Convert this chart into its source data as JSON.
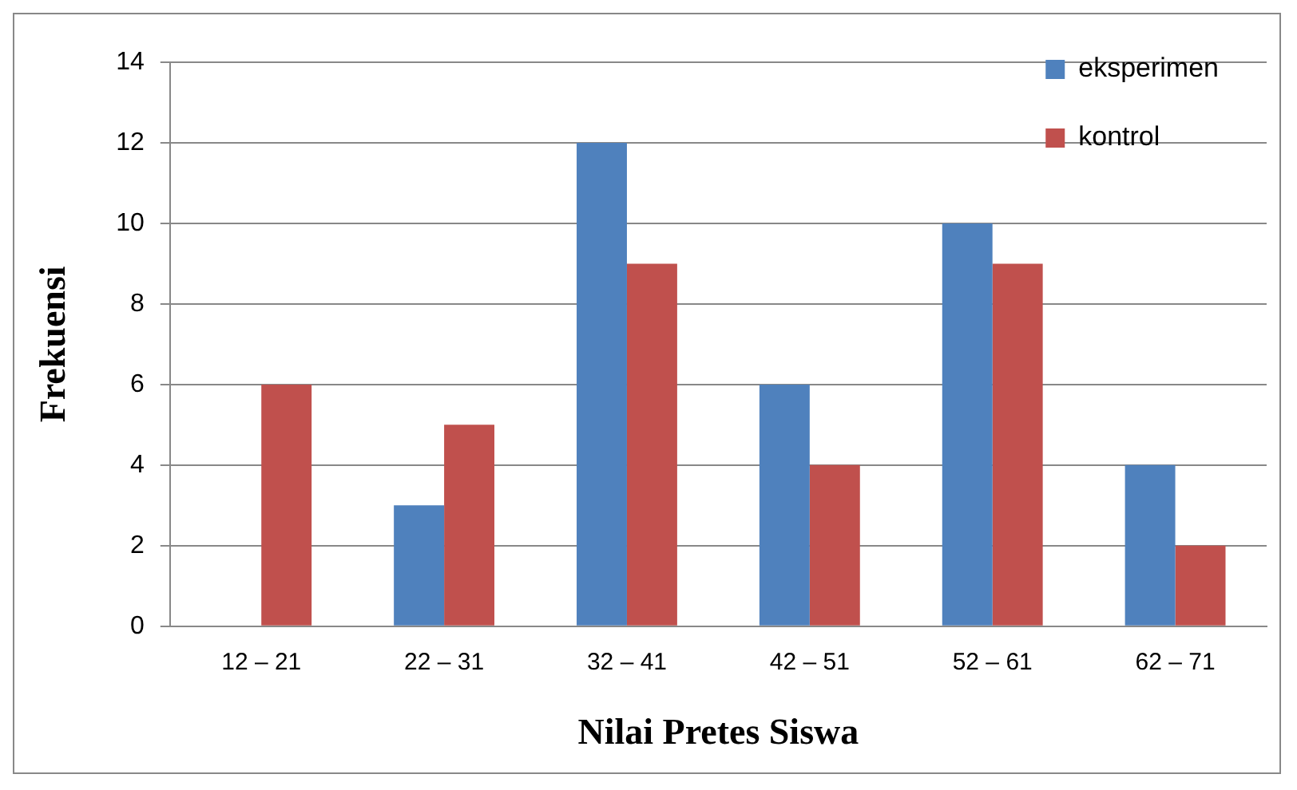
{
  "chart_data": {
    "type": "bar",
    "xlabel": "Nilai Pretes Siswa",
    "ylabel": "Frekuensi",
    "categories": [
      "12 – 21",
      "22 – 31",
      "32 – 41",
      "42 – 51",
      "52 – 61",
      "62 – 71"
    ],
    "series": [
      {
        "name": "eksperimen",
        "color": "#4f81bd",
        "values": [
          0,
          3,
          12,
          6,
          10,
          4
        ]
      },
      {
        "name": "kontrol",
        "color": "#c0504d",
        "values": [
          6,
          5,
          9,
          4,
          9,
          2
        ]
      }
    ],
    "ylim": [
      0,
      14
    ],
    "yticks": [
      0,
      2,
      4,
      6,
      8,
      10,
      12,
      14
    ],
    "grid": "y",
    "legend": "top right"
  }
}
